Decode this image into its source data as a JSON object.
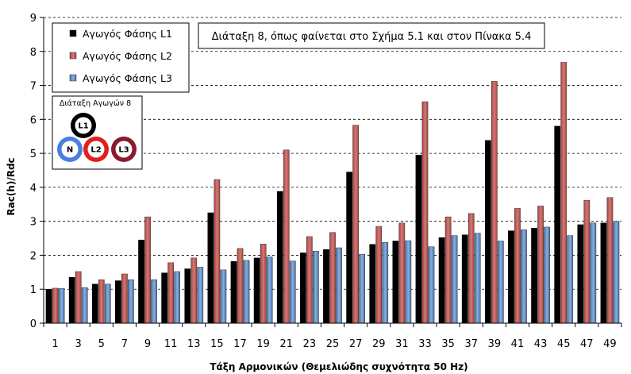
{
  "chart_data": {
    "type": "bar",
    "categories": [
      "1",
      "3",
      "5",
      "7",
      "9",
      "11",
      "13",
      "15",
      "17",
      "19",
      "21",
      "23",
      "25",
      "27",
      "29",
      "31",
      "33",
      "35",
      "37",
      "39",
      "41",
      "43",
      "45",
      "47",
      "49"
    ],
    "series": [
      {
        "name": "Αγωγός Φάσης L1",
        "color": "#000000",
        "values": [
          1.0,
          1.35,
          1.15,
          1.25,
          2.45,
          1.48,
          1.6,
          3.25,
          1.82,
          1.92,
          3.88,
          2.07,
          2.17,
          4.45,
          2.32,
          2.42,
          4.95,
          2.52,
          2.6,
          5.38,
          2.72,
          2.8,
          5.8,
          2.9,
          2.95
        ]
      },
      {
        "name": "Αγωγός Φάσης L2",
        "color": "#c0504d",
        "values": [
          1.03,
          1.52,
          1.28,
          1.45,
          3.13,
          1.78,
          1.92,
          4.23,
          2.2,
          2.33,
          5.1,
          2.55,
          2.67,
          5.83,
          2.85,
          2.95,
          6.52,
          3.13,
          3.23,
          7.12,
          3.38,
          3.45,
          7.68,
          3.62,
          3.7
        ]
      },
      {
        "name": "Αγωγός Φάσης L3",
        "color": "#4f81bd",
        "values": [
          1.02,
          1.05,
          1.15,
          1.28,
          1.28,
          1.52,
          1.65,
          1.57,
          1.85,
          1.95,
          1.83,
          2.12,
          2.22,
          2.03,
          2.38,
          2.43,
          2.25,
          2.58,
          2.65,
          2.42,
          2.75,
          2.83,
          2.58,
          2.95,
          3.0
        ]
      }
    ],
    "xlabel": "Τάξη Αρμονικών (Θεμελιώδης συχνότητα 50 Hz)",
    "ylabel": "Rac(h)/Rdc",
    "ylim": [
      0,
      9
    ],
    "yticks": [
      "0",
      "1",
      "2",
      "3",
      "4",
      "5",
      "6",
      "7",
      "8",
      "9"
    ],
    "grid": "horizontal-dashed",
    "legend_position": "top-left",
    "annotation": "Διάταξη 8, όπως φαίνεται στο Σχήμα 5.1 και στον Πίνακα 5.4",
    "inset": {
      "title": "Διάταξη Αγωγών 8",
      "conductors": [
        {
          "label": "L1",
          "color": "#000000"
        },
        {
          "label": "N",
          "color": "#4a7ee0"
        },
        {
          "label": "L2",
          "color": "#e02020"
        },
        {
          "label": "L3",
          "color": "#8b1a2e"
        }
      ]
    }
  }
}
